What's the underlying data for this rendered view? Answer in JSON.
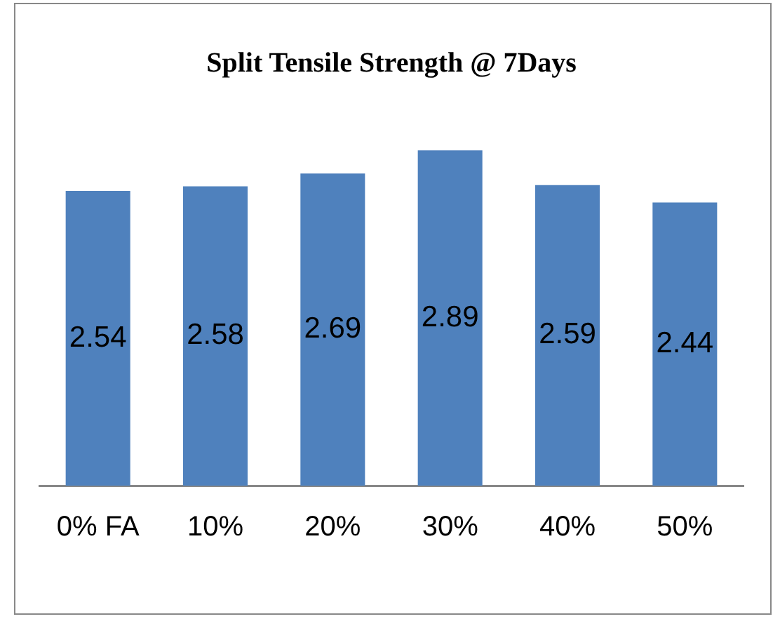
{
  "chart_data": {
    "type": "bar",
    "title": "Split Tensile Strength @ 7Days",
    "categories": [
      "0% FA",
      "10%",
      "20%",
      "30%",
      "40%",
      "50%"
    ],
    "values": [
      2.54,
      2.58,
      2.69,
      2.89,
      2.59,
      2.44
    ],
    "color": "#4f81bd",
    "data_labels": true,
    "grid": false,
    "legend": false,
    "tick_labels": "x"
  }
}
